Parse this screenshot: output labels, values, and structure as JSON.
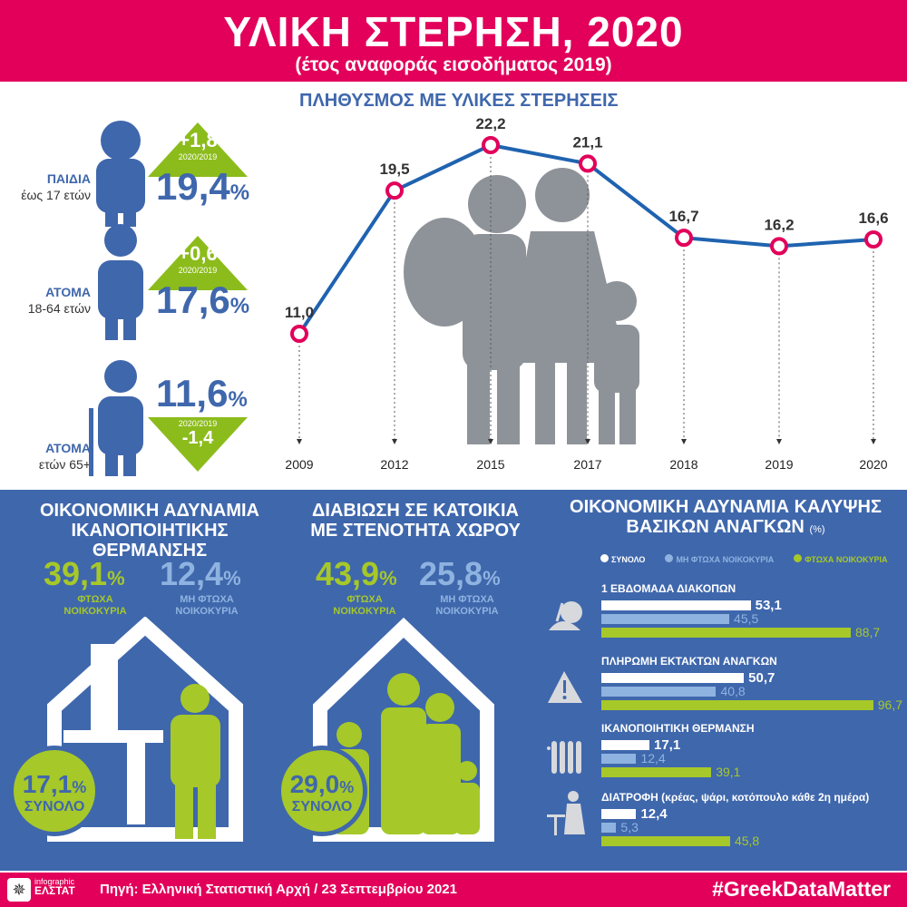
{
  "header": {
    "title": "ΥΛΙΚΗ ΣΤΕΡΗΣΗ, 2020",
    "subtitle": "(έτος αναφοράς εισοδήματος 2019)"
  },
  "groups": [
    {
      "name": "ΠΑΙΔΙΑ",
      "age": "έως 17 ετών",
      "value": "19,4",
      "unit": "%",
      "change": "+1,8",
      "period": "2020/2019",
      "direction": "up"
    },
    {
      "name": "ΑΤΟΜΑ",
      "age": "18-64 ετών",
      "value": "17,6",
      "unit": "%",
      "change": "+0,6",
      "period": "2020/2019",
      "direction": "up"
    },
    {
      "name": "ΑΤΟΜΑ",
      "age": "ετών 65+",
      "value": "11,6",
      "unit": "%",
      "change": "-1,4",
      "period": "2020/2019",
      "direction": "down"
    }
  ],
  "colors": {
    "magenta": "#e2005a",
    "blue": "#3f67ac",
    "line": "#1f63b0",
    "green": "#8cbc1c",
    "lightblue": "#8fb3e0",
    "grey": "#8e9399"
  },
  "chart_data": [
    {
      "type": "line",
      "title": "ΠΛΗΘΥΣΜΟΣ ΜΕ ΥΛΙΚΕΣ ΣΤΕΡΗΣΕΙΣ",
      "x": [
        "2009",
        "2012",
        "2015",
        "2017",
        "2018",
        "2019",
        "2020"
      ],
      "values": [
        11.0,
        19.5,
        22.2,
        21.1,
        16.7,
        16.2,
        16.6
      ],
      "labels": [
        "11,0",
        "19,5",
        "22,2",
        "21,1",
        "16,7",
        "16,2",
        "16,6"
      ],
      "ylim": [
        11,
        22.2
      ]
    },
    {
      "type": "bar",
      "title": "ΟΙΚΟΝΟΜΙΚΗ ΑΔΥΝΑΜΙΑ ΚΑΛΥΨΗΣ ΒΑΣΙΚΩΝ ΑΝΑΓΚΩΝ",
      "unit": "(%)",
      "legend": [
        "ΣΥΝΟΛΟ",
        "ΜΗ ΦΤΩΧΑ ΝΟΙΚΟΚΥΡΙΑ",
        "ΦΤΩΧΑ ΝΟΙΚΟΚΥΡΙΑ"
      ],
      "categories": [
        "1 ΕΒΔΟΜΑΔΑ ΔΙΑΚΟΠΩΝ",
        "ΠΛΗΡΩΜΗ ΕΚΤΑΚΤΩΝ ΑΝΑΓΚΩΝ",
        "ΙΚΑΝΟΠΟΙΗΤΙΚΗ ΘΕΡΜΑΝΣΗ",
        "ΔΙΑΤΡΟΦΗ  (κρέας, ψάρι, κοτόπουλο κάθε 2η ημέρα)"
      ],
      "series": [
        {
          "name": "ΣΥΝΟΛΟ",
          "values": [
            53.1,
            50.7,
            17.1,
            12.4
          ],
          "labels": [
            "53,1",
            "50,7",
            "17,1",
            "12,4"
          ]
        },
        {
          "name": "ΜΗ ΦΤΩΧΑ ΝΟΙΚΟΚΥΡΙΑ",
          "values": [
            45.5,
            40.8,
            12.4,
            5.3
          ],
          "labels": [
            "45,5",
            "40,8",
            "12,4",
            "5,3"
          ]
        },
        {
          "name": "ΦΤΩΧΑ ΝΟΙΚΟΚΥΡΙΑ",
          "values": [
            88.7,
            96.7,
            39.1,
            45.8
          ],
          "labels": [
            "88,7",
            "96,7",
            "39,1",
            "45,8"
          ]
        }
      ]
    }
  ],
  "heating": {
    "title1": "ΟΙΚΟΝΟΜΙΚΗ ΑΔΥΝΑΜΙΑ",
    "title2": "ΙΚΑΝΟΠΟΙΗΤΙΚΗΣ ΘΕΡΜΑΝΣΗΣ",
    "poor": "39,1",
    "poor_label1": "ΦΤΩΧΑ",
    "poor_label2": "ΝΟΙΚΟΚΥΡΙΑ",
    "nonpoor": "12,4",
    "nonpoor_label1": "ΜΗ ΦΤΩΧΑ",
    "nonpoor_label2": "ΝΟΙΚΟΚΥΡΙΑ",
    "total": "17,1",
    "total_label": "ΣΥΝΟΛΟ",
    "unit": "%"
  },
  "crowding": {
    "title1": "ΔΙΑΒΙΩΣΗ ΣΕ ΚΑΤΟΙΚΙΑ",
    "title2": "ΜΕ ΣΤΕΝΟΤΗΤΑ ΧΩΡΟΥ",
    "poor": "43,9",
    "poor_label1": "ΦΤΩΧΑ",
    "poor_label2": "ΝΟΙΚΟΚΥΡΙΑ",
    "nonpoor": "25,8",
    "nonpoor_label1": "ΜΗ ΦΤΩΧΑ",
    "nonpoor_label2": "ΝΟΙΚΟΚΥΡΙΑ",
    "total": "29,0",
    "total_label": "ΣΥΝΟΛΟ",
    "unit": "%"
  },
  "footer": {
    "logo_top": "infographic",
    "logo_bottom": "ΕΛΣΤΑΤ",
    "source": "Πηγή: Ελληνική Στατιστική Αρχή  / 23 Σεπτεμβρίου 2021",
    "hashtag": "#GreekDataMatter"
  }
}
